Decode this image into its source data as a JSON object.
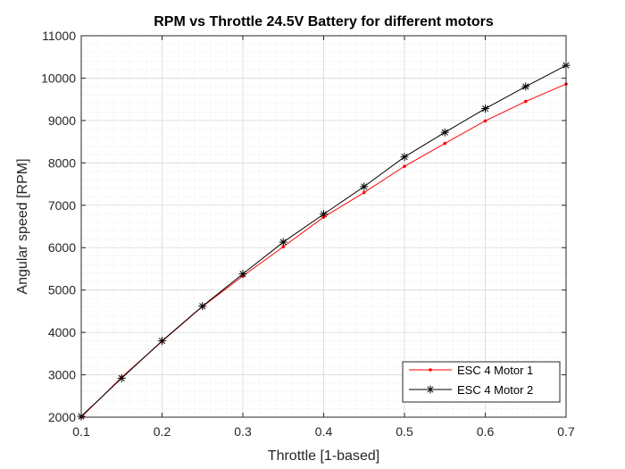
{
  "chart_data": {
    "type": "line",
    "title": "RPM vs Throttle 24.5V Battery for different motors",
    "xlabel": "Throttle [1-based]",
    "ylabel": "Angular speed [RPM]",
    "xlim": [
      0.1,
      0.7
    ],
    "ylim": [
      2000,
      11000
    ],
    "x_ticks": [
      0.1,
      0.2,
      0.3,
      0.4,
      0.5,
      0.6,
      0.7
    ],
    "y_ticks": [
      2000,
      3000,
      4000,
      5000,
      6000,
      7000,
      8000,
      9000,
      10000,
      11000
    ],
    "x_tick_labels": [
      "0.1",
      "0.2",
      "0.3",
      "0.4",
      "0.5",
      "0.6",
      "0.7"
    ],
    "y_tick_labels": [
      "2000",
      "3000",
      "4000",
      "5000",
      "6000",
      "7000",
      "8000",
      "9000",
      "10000",
      "11000"
    ],
    "grid": true,
    "minor_grid": true,
    "legend_position": "bottom-right",
    "x": [
      0.1,
      0.15,
      0.2,
      0.25,
      0.3,
      0.35,
      0.4,
      0.45,
      0.5,
      0.55,
      0.6,
      0.65,
      0.7
    ],
    "series": [
      {
        "name": "ESC 4 Motor 1",
        "color": "#ff0000",
        "marker": "dot",
        "values": [
          2000,
          2940,
          3790,
          4610,
          5330,
          6020,
          6720,
          7300,
          7920,
          8460,
          8990,
          9450,
          9860
        ]
      },
      {
        "name": "ESC 4 Motor 2",
        "color": "#000000",
        "marker": "asterisk",
        "values": [
          2020,
          2920,
          3800,
          4620,
          5380,
          6130,
          6790,
          7440,
          8140,
          8720,
          9280,
          9800,
          10300
        ]
      }
    ]
  }
}
